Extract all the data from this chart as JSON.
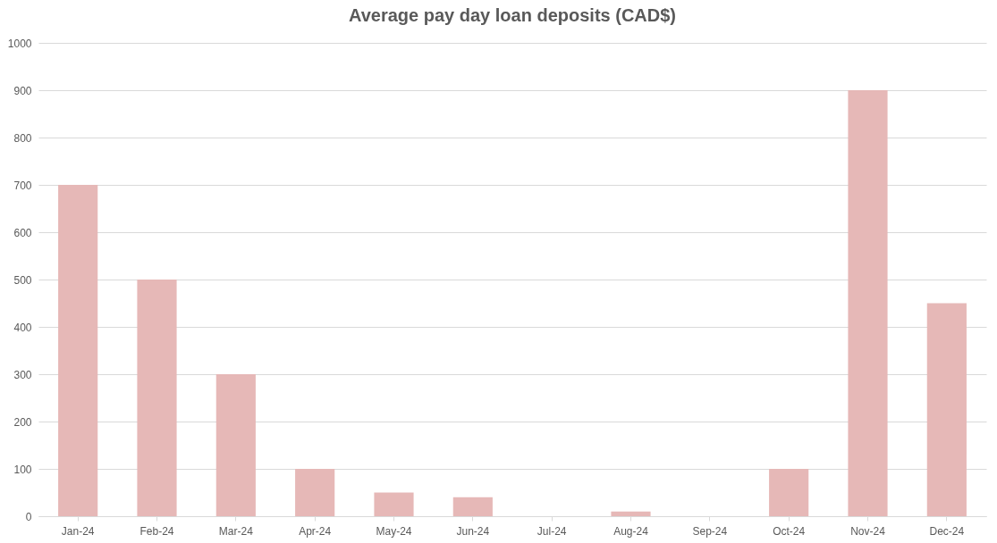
{
  "chart_data": {
    "type": "bar",
    "title": "Average pay day loan deposits (CAD$)",
    "categories": [
      "Jan-24",
      "Feb-24",
      "Mar-24",
      "Apr-24",
      "May-24",
      "Jun-24",
      "Jul-24",
      "Aug-24",
      "Sep-24",
      "Oct-24",
      "Nov-24",
      "Dec-24"
    ],
    "values": [
      700,
      500,
      300,
      100,
      50,
      40,
      0,
      10,
      0,
      100,
      900,
      450
    ],
    "color": "#e6b8b7",
    "ylim": [
      0,
      1000
    ],
    "yticks": [
      0,
      100,
      200,
      300,
      400,
      500,
      600,
      700,
      800,
      900,
      1000
    ],
    "grid": "y"
  }
}
